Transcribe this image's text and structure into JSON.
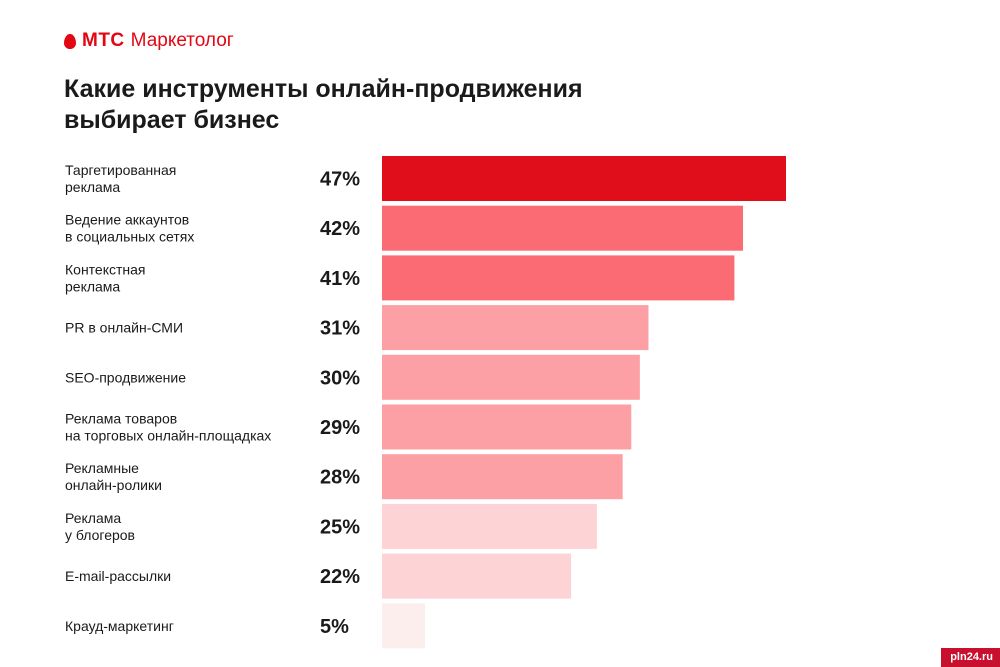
{
  "brand": {
    "name": "МТС",
    "product": "Маркетолог",
    "logo_icon": "mts-drop-icon"
  },
  "header": {
    "title_line1": "Какие инструменты онлайн-продвижения",
    "title_line2": "выбирает бизнес"
  },
  "chart_data": {
    "type": "bar",
    "orientation": "horizontal",
    "title": "Какие инструменты онлайн-продвижения выбирает бизнес",
    "xlim": [
      0,
      47
    ],
    "categories": [
      [
        "Таргетированная",
        "реклама"
      ],
      [
        "Ведение аккаунтов",
        "в социальных сетях"
      ],
      [
        "Контекстная",
        "реклама"
      ],
      [
        "PR в онлайн-СМИ"
      ],
      [
        "SEO-продвижение"
      ],
      [
        "Реклама товаров",
        "на торговых онлайн-площадках"
      ],
      [
        "Рекламные",
        "онлайн-ролики"
      ],
      [
        "Реклама",
        "у блогеров"
      ],
      [
        "E-mail-рассылки"
      ],
      [
        "Крауд-маркетинг"
      ]
    ],
    "values": [
      47,
      42,
      41,
      31,
      30,
      29,
      28,
      25,
      22,
      5
    ],
    "value_labels": [
      "47%",
      "42%",
      "41%",
      "31%",
      "30%",
      "29%",
      "28%",
      "25%",
      "22%",
      "5%"
    ],
    "bar_colors": [
      "#e00d1a",
      "#fb6b73",
      "#fb6b73",
      "#fda0a6",
      "#fda0a6",
      "#fda0a6",
      "#fda0a6",
      "#fdd3d5",
      "#fdd3d5",
      "#fdeeee"
    ]
  },
  "watermark": {
    "text": "pln24.ru"
  }
}
